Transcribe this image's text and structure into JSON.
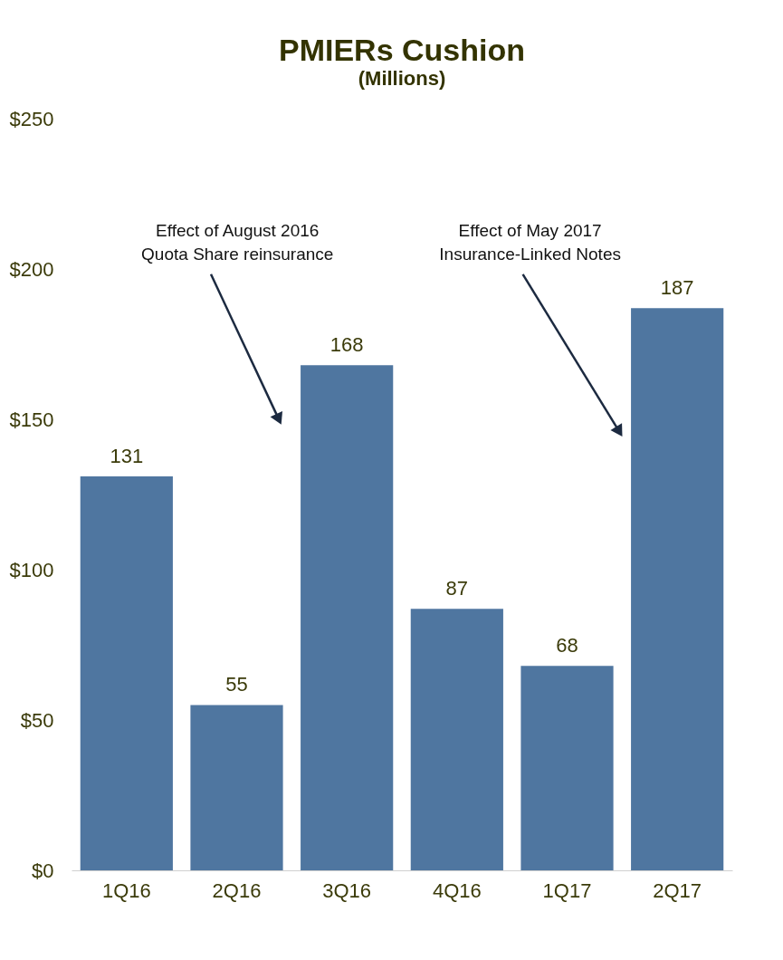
{
  "chart_data": {
    "type": "bar",
    "title": "PMIERs Cushion",
    "subtitle": "(Millions)",
    "categories": [
      "1Q16",
      "2Q16",
      "3Q16",
      "4Q16",
      "1Q17",
      "2Q17"
    ],
    "values": [
      131,
      55,
      168,
      87,
      68,
      187
    ],
    "color": "#4f76a0",
    "ylim": [
      0,
      250
    ],
    "yticks": [
      {
        "value": 0,
        "label": "$0"
      },
      {
        "value": 50,
        "label": "$50"
      },
      {
        "value": 100,
        "label": "$100"
      },
      {
        "value": 150,
        "label": "$150"
      },
      {
        "value": 200,
        "label": "$200"
      },
      {
        "value": 250,
        "label": "$250"
      }
    ],
    "data_labels": true,
    "grid": false,
    "annotations": [
      "Effect of August 2016\nQuota Share reinsurance",
      "Effect of May 2017\nInsurance-Linked Notes"
    ]
  }
}
